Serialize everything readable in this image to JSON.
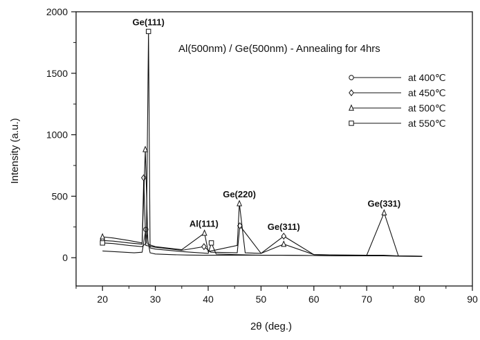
{
  "chart_data": {
    "type": "line",
    "title": "Al(500nm) / Ge(500nm) - Annealing for 4hrs",
    "xlabel": "2θ (deg.)",
    "ylabel": "Intensity (a.u.)",
    "xlim": [
      15,
      90
    ],
    "ylim": [
      -230,
      2000
    ],
    "x_ticks": [
      20,
      30,
      40,
      50,
      60,
      70,
      80,
      90
    ],
    "x_tick_labels": [
      "20",
      "30",
      "40",
      "50",
      "60",
      "70",
      "80",
      "90"
    ],
    "y_ticks": [
      0,
      500,
      1000,
      1500,
      2000
    ],
    "y_tick_labels": [
      "0",
      "500",
      "1000",
      "1500",
      "2000"
    ],
    "grid": false,
    "legend_position": "top-right",
    "series": [
      {
        "name": "at 400℃",
        "marker": "circle",
        "x": [
          20,
          22,
          24,
          26,
          27.5,
          28.2,
          29,
          30,
          33,
          36,
          39,
          40.5,
          45,
          50,
          54,
          60,
          65,
          70,
          73.2,
          75,
          80.5
        ],
        "y": [
          55,
          50,
          45,
          40,
          45,
          230,
          40,
          30,
          25,
          22,
          20,
          20,
          20,
          20,
          20,
          18,
          15,
          15,
          15,
          15,
          12
        ]
      },
      {
        "name": "at 450℃",
        "marker": "diamond",
        "x": [
          20,
          22,
          25,
          27.5,
          27.8,
          28.2,
          30,
          35,
          39.2,
          40.5,
          45.5,
          46,
          50,
          54.3,
          60,
          65,
          70,
          73.2,
          76,
          80.5
        ],
        "y": [
          140,
          135,
          120,
          110,
          650,
          100,
          85,
          60,
          90,
          45,
          40,
          260,
          35,
          175,
          25,
          22,
          20,
          20,
          15,
          12
        ]
      },
      {
        "name": "at 500℃",
        "marker": "triangle",
        "x": [
          20,
          22,
          25,
          27.5,
          28.1,
          28.6,
          30,
          35,
          39.3,
          40,
          45.5,
          45.9,
          47,
          50,
          54.3,
          60,
          65,
          70,
          73.3,
          76,
          80.5
        ],
        "y": [
          170,
          160,
          140,
          120,
          880,
          110,
          90,
          65,
          200,
          50,
          100,
          440,
          40,
          35,
          110,
          25,
          22,
          20,
          365,
          15,
          12
        ]
      },
      {
        "name": "at 550℃",
        "marker": "square",
        "x": [
          20,
          22,
          25,
          27.5,
          28.3,
          28.7,
          29,
          30,
          35,
          40,
          40.6,
          41.5,
          45,
          50,
          54,
          60,
          65,
          70,
          73.2,
          76,
          80.5
        ],
        "y": [
          120,
          115,
          100,
          90,
          120,
          1840,
          80,
          70,
          50,
          35,
          120,
          30,
          25,
          20,
          20,
          18,
          15,
          15,
          15,
          12,
          10
        ]
      }
    ],
    "annotations": [
      {
        "text": "Ge(111)",
        "x": 28.7,
        "y": 1840
      },
      {
        "text": "Al(111)",
        "x": 39.2,
        "y": 200
      },
      {
        "text": "Ge(220)",
        "x": 45.9,
        "y": 440
      },
      {
        "text": "Ge(311)",
        "x": 54.3,
        "y": 175
      },
      {
        "text": "Ge(331)",
        "x": 73.3,
        "y": 365
      }
    ]
  }
}
